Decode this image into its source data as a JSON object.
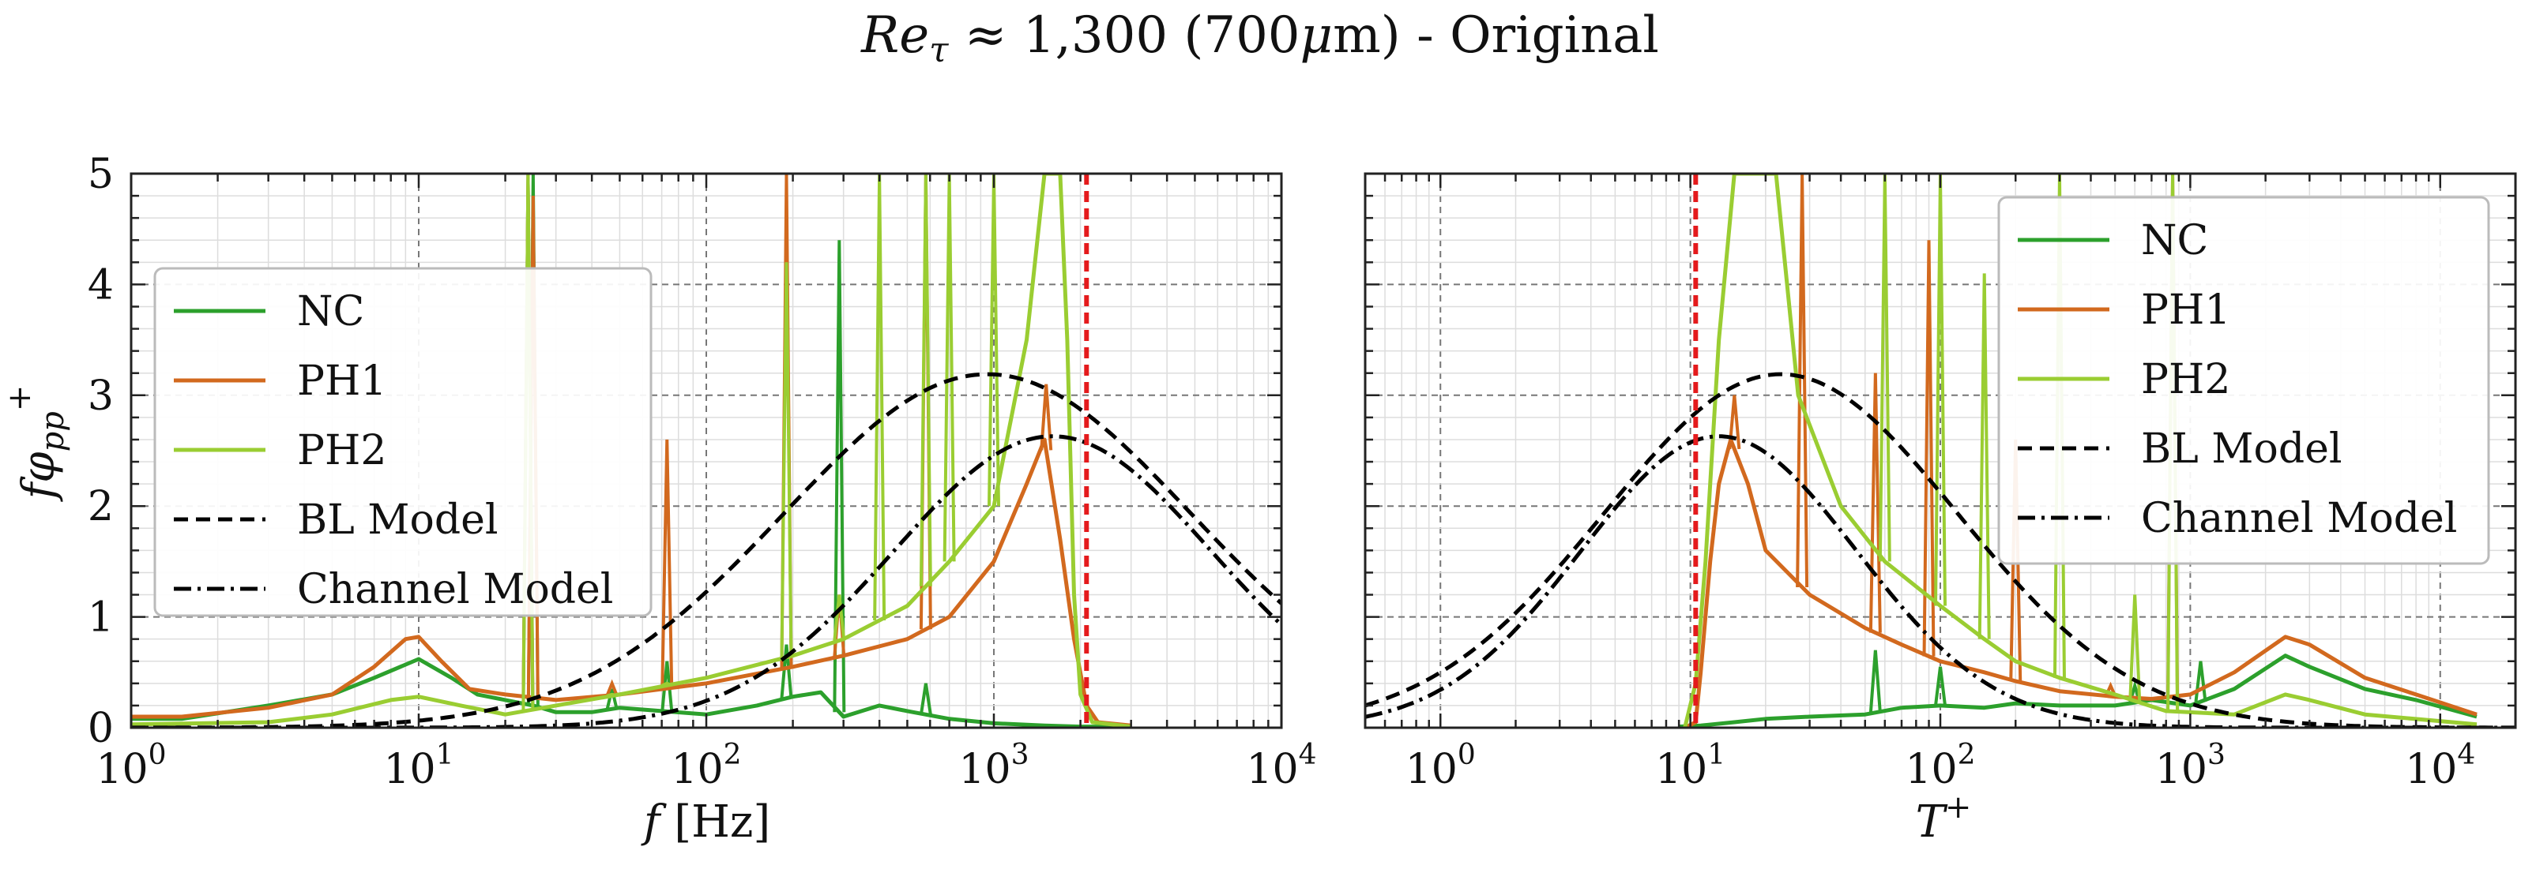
{
  "figure": {
    "title_pre": "Re",
    "title_sub": "τ",
    "title_post": " ≈ 1,300 (700",
    "title_mu": "μ",
    "title_tail": "m) - Original"
  },
  "colors": {
    "NC": "#2ca02c",
    "PH1": "#d2691e",
    "PH2": "#9acd32",
    "BL Model": "#000000",
    "Channel Model": "#000000",
    "cutoff": "#e41a1c"
  },
  "chart_data": [
    {
      "type": "line",
      "xscale": "log",
      "xlim": [
        1,
        10000
      ],
      "ylim": [
        0,
        5
      ],
      "xlabel_var": "f",
      "xlabel_unit": " [Hz]",
      "ylabel": "fφpp+",
      "xticks": [
        1,
        10,
        100,
        1000,
        10000
      ],
      "xtick_labels": [
        [
          "10",
          "0"
        ],
        [
          "10",
          "1"
        ],
        [
          "10",
          "2"
        ],
        [
          "10",
          "3"
        ],
        [
          "10",
          "4"
        ]
      ],
      "yticks": [
        0,
        1,
        2,
        3,
        4,
        5
      ],
      "ytick_labels": [
        "0",
        "1",
        "2",
        "3",
        "4",
        "5"
      ],
      "grid": true,
      "legend": "center-left",
      "cutoff_x": 2100,
      "series": [
        {
          "name": "NC",
          "style": "solid",
          "points": [
            [
              1,
              0.08
            ],
            [
              1.5,
              0.08
            ],
            [
              3,
              0.2
            ],
            [
              5,
              0.3
            ],
            [
              7,
              0.45
            ],
            [
              10,
              0.62
            ],
            [
              13,
              0.45
            ],
            [
              16,
              0.3
            ],
            [
              20,
              0.25
            ],
            [
              25,
              0.2
            ],
            [
              30,
              0.14
            ],
            [
              40,
              0.14
            ],
            [
              50,
              0.18
            ],
            [
              70,
              0.15
            ],
            [
              100,
              0.12
            ],
            [
              150,
              0.2
            ],
            [
              200,
              0.28
            ],
            [
              250,
              0.32
            ],
            [
              300,
              0.1
            ],
            [
              400,
              0.2
            ],
            [
              500,
              0.15
            ],
            [
              700,
              0.08
            ],
            [
              1000,
              0.04
            ],
            [
              1500,
              0.02
            ],
            [
              2000,
              0.01
            ],
            [
              3000,
              0.01
            ]
          ],
          "spikes": [
            [
              24,
              5.0
            ],
            [
              25,
              5.0
            ],
            [
              47,
              0.35
            ],
            [
              73,
              0.6
            ],
            [
              190,
              0.75
            ],
            [
              290,
              4.4
            ],
            [
              580,
              0.4
            ]
          ]
        },
        {
          "name": "PH1",
          "style": "solid",
          "points": [
            [
              1,
              0.1
            ],
            [
              1.5,
              0.1
            ],
            [
              3,
              0.18
            ],
            [
              5,
              0.3
            ],
            [
              7,
              0.55
            ],
            [
              9,
              0.8
            ],
            [
              10,
              0.82
            ],
            [
              12,
              0.6
            ],
            [
              15,
              0.35
            ],
            [
              20,
              0.3
            ],
            [
              30,
              0.25
            ],
            [
              50,
              0.3
            ],
            [
              100,
              0.4
            ],
            [
              200,
              0.55
            ],
            [
              300,
              0.65
            ],
            [
              500,
              0.8
            ],
            [
              700,
              1.0
            ],
            [
              1000,
              1.5
            ],
            [
              1300,
              2.2
            ],
            [
              1500,
              2.6
            ],
            [
              1700,
              1.7
            ],
            [
              1900,
              0.8
            ],
            [
              2100,
              0.2
            ],
            [
              2300,
              0.05
            ],
            [
              3000,
              0.02
            ]
          ],
          "spikes": [
            [
              24,
              5.0
            ],
            [
              25,
              4.8
            ],
            [
              47,
              0.4
            ],
            [
              73,
              2.6
            ],
            [
              190,
              5.0
            ],
            [
              290,
              1.2
            ],
            [
              580,
              5.0
            ],
            [
              1520,
              3.1
            ]
          ]
        },
        {
          "name": "PH2",
          "style": "solid",
          "points": [
            [
              1,
              0.03
            ],
            [
              3,
              0.05
            ],
            [
              5,
              0.12
            ],
            [
              8,
              0.25
            ],
            [
              10,
              0.28
            ],
            [
              14,
              0.2
            ],
            [
              20,
              0.12
            ],
            [
              30,
              0.2
            ],
            [
              50,
              0.3
            ],
            [
              100,
              0.45
            ],
            [
              200,
              0.65
            ],
            [
              300,
              0.8
            ],
            [
              500,
              1.1
            ],
            [
              700,
              1.5
            ],
            [
              1000,
              2.0
            ],
            [
              1300,
              3.5
            ],
            [
              1500,
              5.0
            ],
            [
              1700,
              5.0
            ],
            [
              1800,
              3.5
            ],
            [
              1900,
              1.2
            ],
            [
              2000,
              0.3
            ],
            [
              2200,
              0.05
            ],
            [
              3000,
              0.01
            ]
          ],
          "spikes": [
            [
              24,
              5.0
            ],
            [
              47,
              0.3
            ],
            [
              73,
              0.4
            ],
            [
              190,
              4.2
            ],
            [
              290,
              1.2
            ],
            [
              400,
              5.0
            ],
            [
              580,
              5.0
            ],
            [
              700,
              5.0
            ],
            [
              1000,
              5.0
            ]
          ]
        },
        {
          "name": "BL Model",
          "style": "dashed",
          "peak_x": 950,
          "peak_y": 3.19,
          "width": 1.0
        },
        {
          "name": "Channel Model",
          "style": "dashdot",
          "peak_x": 1600,
          "peak_y": 2.63,
          "width": 0.78
        }
      ]
    },
    {
      "type": "line",
      "xscale": "log",
      "xlim": [
        0.5,
        20000
      ],
      "ylim": [
        0,
        5
      ],
      "xlabel_var": "T",
      "xlabel_sup": "+",
      "xticks": [
        1,
        10,
        100,
        1000,
        10000
      ],
      "xtick_labels": [
        [
          "10",
          "0"
        ],
        [
          "10",
          "1"
        ],
        [
          "10",
          "2"
        ],
        [
          "10",
          "3"
        ],
        [
          "10",
          "4"
        ]
      ],
      "yticks": [
        0,
        1,
        2,
        3,
        4,
        5
      ],
      "grid": true,
      "legend": "top-right",
      "cutoff_x": 10.5,
      "series": [
        {
          "name": "NC",
          "style": "solid",
          "points": [
            [
              9,
              0.01
            ],
            [
              11,
              0.02
            ],
            [
              15,
              0.05
            ],
            [
              20,
              0.08
            ],
            [
              30,
              0.1
            ],
            [
              50,
              0.12
            ],
            [
              70,
              0.18
            ],
            [
              100,
              0.2
            ],
            [
              150,
              0.18
            ],
            [
              200,
              0.22
            ],
            [
              300,
              0.2
            ],
            [
              500,
              0.2
            ],
            [
              700,
              0.25
            ],
            [
              1000,
              0.2
            ],
            [
              1500,
              0.35
            ],
            [
              2400,
              0.65
            ],
            [
              3000,
              0.55
            ],
            [
              5000,
              0.35
            ],
            [
              8000,
              0.25
            ],
            [
              14000,
              0.1
            ]
          ],
          "spikes": [
            [
              55,
              0.7
            ],
            [
              100,
              0.55
            ],
            [
              600,
              0.38
            ],
            [
              1100,
              0.6
            ]
          ]
        },
        {
          "name": "PH1",
          "style": "solid",
          "points": [
            [
              9.5,
              0.0
            ],
            [
              10.5,
              0.05
            ],
            [
              11,
              0.5
            ],
            [
              12,
              1.5
            ],
            [
              13,
              2.2
            ],
            [
              14.5,
              2.6
            ],
            [
              17,
              2.2
            ],
            [
              20,
              1.6
            ],
            [
              30,
              1.2
            ],
            [
              50,
              0.9
            ],
            [
              70,
              0.75
            ],
            [
              100,
              0.6
            ],
            [
              150,
              0.5
            ],
            [
              200,
              0.42
            ],
            [
              300,
              0.33
            ],
            [
              500,
              0.28
            ],
            [
              700,
              0.26
            ],
            [
              1000,
              0.3
            ],
            [
              1500,
              0.5
            ],
            [
              2400,
              0.82
            ],
            [
              3000,
              0.75
            ],
            [
              5000,
              0.45
            ],
            [
              8000,
              0.3
            ],
            [
              14000,
              0.12
            ]
          ],
          "spikes": [
            [
              15,
              3.0
            ],
            [
              28,
              5.0
            ],
            [
              55,
              3.2
            ],
            [
              90,
              4.4
            ],
            [
              200,
              2.6
            ],
            [
              480,
              0.38
            ],
            [
              850,
              5.0
            ]
          ]
        },
        {
          "name": "PH2",
          "style": "solid",
          "points": [
            [
              9.5,
              0.0
            ],
            [
              10.5,
              0.4
            ],
            [
              11.5,
              1.5
            ],
            [
              13,
              3.5
            ],
            [
              15,
              5.0
            ],
            [
              18,
              5.0
            ],
            [
              22,
              5.0
            ],
            [
              27,
              3.0
            ],
            [
              40,
              2.0
            ],
            [
              60,
              1.5
            ],
            [
              100,
              1.1
            ],
            [
              150,
              0.8
            ],
            [
              200,
              0.6
            ],
            [
              300,
              0.45
            ],
            [
              500,
              0.3
            ],
            [
              800,
              0.15
            ],
            [
              1500,
              0.12
            ],
            [
              2400,
              0.3
            ],
            [
              3000,
              0.25
            ],
            [
              5000,
              0.12
            ],
            [
              14000,
              0.03
            ]
          ],
          "spikes": [
            [
              60,
              5.0
            ],
            [
              100,
              5.0
            ],
            [
              150,
              4.1
            ],
            [
              300,
              5.0
            ],
            [
              600,
              1.2
            ],
            [
              850,
              5.0
            ]
          ]
        },
        {
          "name": "BL Model",
          "style": "dashed",
          "peak_x": 23,
          "peak_y": 3.19,
          "width": 1.0
        },
        {
          "name": "Channel Model",
          "style": "dashdot",
          "peak_x": 13,
          "peak_y": 2.63,
          "width": 0.78
        }
      ]
    }
  ]
}
